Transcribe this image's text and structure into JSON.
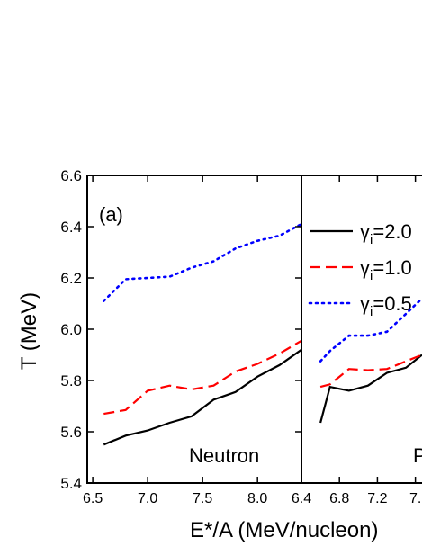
{
  "chart_data": [
    {
      "type": "line",
      "panel_label": "(a)",
      "annotation": "Neutron",
      "xlabel": "E*/A (MeV/nucleon)",
      "ylabel": "T (MeV)",
      "xlim": [
        6.45,
        8.4
      ],
      "ylim": [
        5.4,
        6.6
      ],
      "x_ticks": [
        6.5,
        7.0,
        7.5,
        8.0
      ],
      "x_tick_labels": [
        "6.5",
        "7.0",
        "7.5",
        "8.0"
      ],
      "y_ticks": [
        5.4,
        5.6,
        5.8,
        6.0,
        6.2,
        6.4,
        6.6
      ],
      "y_tick_labels": [
        "5.4",
        "5.6",
        "5.8",
        "6.0",
        "6.2",
        "6.4",
        "6.6"
      ],
      "grid": false,
      "series": [
        {
          "color": "#000000",
          "dash": "solid",
          "x": [
            6.6,
            6.8,
            7.0,
            7.2,
            7.4,
            7.6,
            7.8,
            8.0,
            8.2,
            8.4
          ],
          "y": [
            5.55,
            5.585,
            5.605,
            5.635,
            5.66,
            5.725,
            5.755,
            5.815,
            5.86,
            5.92
          ]
        },
        {
          "color": "#ff0000",
          "dash": "dashed",
          "x": [
            6.6,
            6.8,
            7.0,
            7.2,
            7.4,
            7.6,
            7.8,
            8.0,
            8.2,
            8.4
          ],
          "y": [
            5.67,
            5.685,
            5.76,
            5.78,
            5.765,
            5.78,
            5.835,
            5.865,
            5.905,
            5.955
          ]
        },
        {
          "color": "#0000ff",
          "dash": "dotted",
          "x": [
            6.6,
            6.8,
            7.0,
            7.2,
            7.4,
            7.6,
            7.8,
            8.0,
            8.2,
            8.4
          ],
          "y": [
            6.11,
            6.195,
            6.2,
            6.205,
            6.24,
            6.265,
            6.315,
            6.345,
            6.365,
            6.41
          ]
        }
      ]
    },
    {
      "type": "line",
      "annotation": "P",
      "xlim": [
        6.4,
        7.67
      ],
      "ylim": [
        5.4,
        6.6
      ],
      "x_ticks": [
        6.4,
        6.8,
        7.2,
        7.6
      ],
      "x_tick_labels": [
        "6.4",
        "6.8",
        "7.2",
        "7."
      ],
      "grid": false,
      "legend": {
        "placement": "top-left",
        "entries": [
          {
            "prefix": "γ",
            "sub": "i",
            "suffix": "=2.0",
            "color": "#000000",
            "dash": "solid"
          },
          {
            "prefix": "γ",
            "sub": "i",
            "suffix": "=1.0",
            "color": "#ff0000",
            "dash": "dashed"
          },
          {
            "prefix": "γ",
            "sub": "i",
            "suffix": "=0.5",
            "color": "#0000ff",
            "dash": "dotted"
          }
        ]
      },
      "series": [
        {
          "color": "#000000",
          "dash": "solid",
          "x": [
            6.6,
            6.7,
            6.9,
            7.1,
            7.3,
            7.5,
            7.67
          ],
          "y": [
            5.635,
            5.775,
            5.76,
            5.78,
            5.83,
            5.85,
            5.9
          ]
        },
        {
          "color": "#ff0000",
          "dash": "dashed",
          "x": [
            6.6,
            6.7,
            6.9,
            7.1,
            7.3,
            7.5,
            7.67
          ],
          "y": [
            5.775,
            5.785,
            5.845,
            5.84,
            5.845,
            5.875,
            5.9
          ]
        },
        {
          "color": "#0000ff",
          "dash": "dotted",
          "x": [
            6.6,
            6.7,
            6.9,
            7.1,
            7.3,
            7.5,
            7.67
          ],
          "y": [
            5.875,
            5.915,
            5.975,
            5.975,
            5.99,
            6.06,
            6.12
          ]
        }
      ]
    }
  ]
}
